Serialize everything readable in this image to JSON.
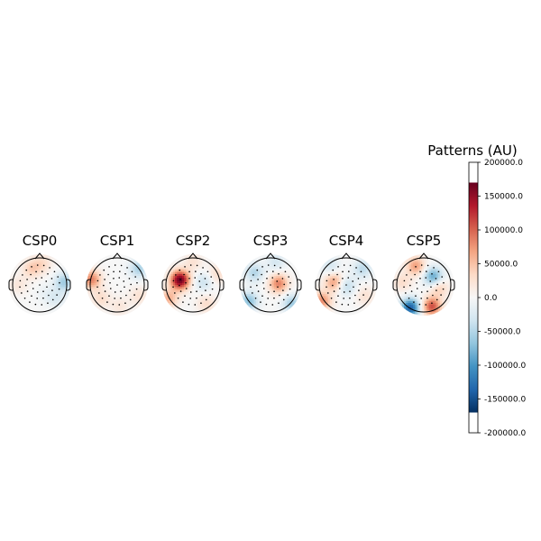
{
  "chart_data": {
    "type": "heatmap",
    "colorbar": {
      "title": "Patterns (AU)",
      "vmin": -200000,
      "vmax": 200000,
      "data_min": -170000,
      "data_max": 170000,
      "colormap": "RdBu_r",
      "ticks": [
        {
          "value": 200000,
          "label": "200000.0"
        },
        {
          "value": 150000,
          "label": "150000.0"
        },
        {
          "value": 100000,
          "label": "100000.0"
        },
        {
          "value": 50000,
          "label": "50000.0"
        },
        {
          "value": 0,
          "label": "0.0"
        },
        {
          "value": -50000,
          "label": "-50000.0"
        },
        {
          "value": -100000,
          "label": "-100000.0"
        },
        {
          "value": -150000,
          "label": "-150000.0"
        },
        {
          "value": -200000,
          "label": "-200000.0"
        }
      ]
    },
    "topomaps": [
      {
        "title": "CSP0",
        "sources": [
          {
            "x": -0.3,
            "y": 0.6,
            "v": 40000
          },
          {
            "x": 0.1,
            "y": 0.8,
            "v": 30000
          },
          {
            "x": 0.9,
            "y": 0.1,
            "v": -60000
          },
          {
            "x": 0.6,
            "y": -0.5,
            "v": -25000
          },
          {
            "x": -0.8,
            "y": 0.0,
            "v": 20000
          },
          {
            "x": 0.2,
            "y": -0.3,
            "v": -10000
          }
        ]
      },
      {
        "title": "CSP1",
        "sources": [
          {
            "x": -0.95,
            "y": 0.2,
            "v": 85000
          },
          {
            "x": -0.6,
            "y": -0.5,
            "v": 30000
          },
          {
            "x": 0.8,
            "y": 0.6,
            "v": -55000
          },
          {
            "x": 0.1,
            "y": -0.8,
            "v": 20000
          },
          {
            "x": 0.8,
            "y": -0.4,
            "v": 25000
          }
        ]
      },
      {
        "title": "CSP2",
        "sources": [
          {
            "x": -0.48,
            "y": 0.18,
            "v": 170000
          },
          {
            "x": -0.9,
            "y": -0.5,
            "v": 60000
          },
          {
            "x": 0.4,
            "y": 0.1,
            "v": -35000
          },
          {
            "x": 0.0,
            "y": 0.85,
            "v": 25000
          },
          {
            "x": 0.9,
            "y": 0.4,
            "v": 30000
          },
          {
            "x": 0.5,
            "y": -0.7,
            "v": 30000
          }
        ]
      },
      {
        "title": "CSP3",
        "sources": [
          {
            "x": 0.3,
            "y": 0.05,
            "v": 85000
          },
          {
            "x": -0.6,
            "y": 0.45,
            "v": -50000
          },
          {
            "x": -0.8,
            "y": -0.6,
            "v": -70000
          },
          {
            "x": 0.8,
            "y": -0.7,
            "v": -60000
          },
          {
            "x": 0.2,
            "y": 0.85,
            "v": -30000
          }
        ]
      },
      {
        "title": "CSP4",
        "sources": [
          {
            "x": -0.45,
            "y": 0.1,
            "v": 70000
          },
          {
            "x": -0.9,
            "y": -0.6,
            "v": 80000
          },
          {
            "x": 0.0,
            "y": -0.05,
            "v": -45000
          },
          {
            "x": 0.6,
            "y": 0.6,
            "v": -45000
          },
          {
            "x": 0.7,
            "y": -0.4,
            "v": 25000
          },
          {
            "x": -0.6,
            "y": 0.7,
            "v": -30000
          }
        ]
      },
      {
        "title": "CSP5",
        "sources": [
          {
            "x": -0.3,
            "y": 0.7,
            "v": 70000
          },
          {
            "x": 0.35,
            "y": 0.3,
            "v": -90000
          },
          {
            "x": -0.5,
            "y": -0.85,
            "v": -140000
          },
          {
            "x": 0.3,
            "y": -0.8,
            "v": 110000
          },
          {
            "x": 0.55,
            "y": -0.1,
            "v": 45000
          },
          {
            "x": -0.8,
            "y": 0.1,
            "v": 30000
          }
        ]
      }
    ]
  }
}
